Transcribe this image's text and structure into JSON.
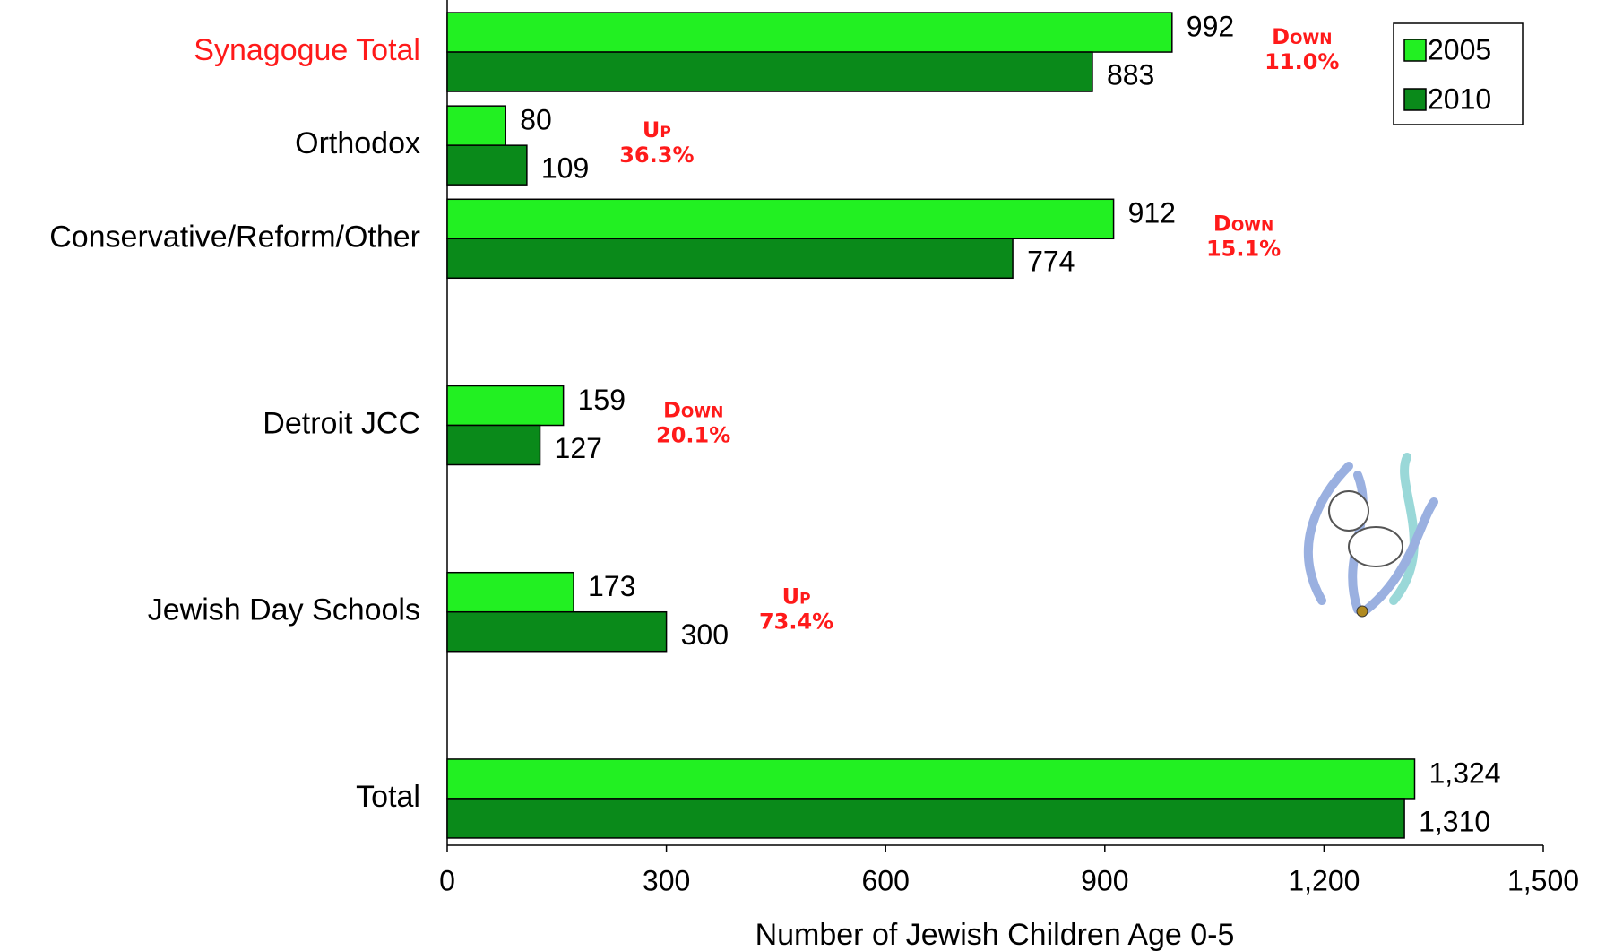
{
  "chart_data": {
    "type": "bar",
    "orientation": "horizontal",
    "x_label": "Number of Jewish Children Age 0-5",
    "categories": [
      "Synagogue Total",
      "Orthodox",
      "Conservative/Reform/Other",
      null,
      "Detroit JCC",
      null,
      "Jewish Day Schools",
      null,
      "Total"
    ],
    "category_colors": [
      "#ff1a1a",
      "#000000",
      "#000000",
      null,
      "#000000",
      null,
      "#000000",
      null,
      "#000000"
    ],
    "series": [
      {
        "name": "2005",
        "color": "#22f022",
        "values": [
          992,
          80,
          912,
          null,
          159,
          null,
          173,
          null,
          1324
        ],
        "value_labels": [
          "992",
          "80",
          "912",
          null,
          "159",
          null,
          "173",
          null,
          "1,324"
        ]
      },
      {
        "name": "2010",
        "color": "#0a8a1a",
        "values": [
          883,
          109,
          774,
          null,
          127,
          null,
          300,
          null,
          1310
        ],
        "value_labels": [
          "883",
          "109",
          "774",
          null,
          "127",
          null,
          "300",
          null,
          "1,310"
        ]
      }
    ],
    "annotations": [
      {
        "direction": "Down",
        "change": "11.0%"
      },
      {
        "direction": "Up",
        "change": "36.3%"
      },
      {
        "direction": "Down",
        "change": "15.1%"
      },
      null,
      {
        "direction": "Down",
        "change": "20.1%"
      },
      null,
      {
        "direction": "Up",
        "change": "73.4%"
      },
      null,
      null
    ],
    "annotation_color": "#ff1a1a",
    "xlim": [
      0,
      1500
    ],
    "xticks": [
      0,
      300,
      600,
      900,
      {
        "value": 1200,
        "label": "1,200"
      },
      {
        "value": 1500,
        "label": "1,500"
      }
    ],
    "legend": "top-right"
  }
}
